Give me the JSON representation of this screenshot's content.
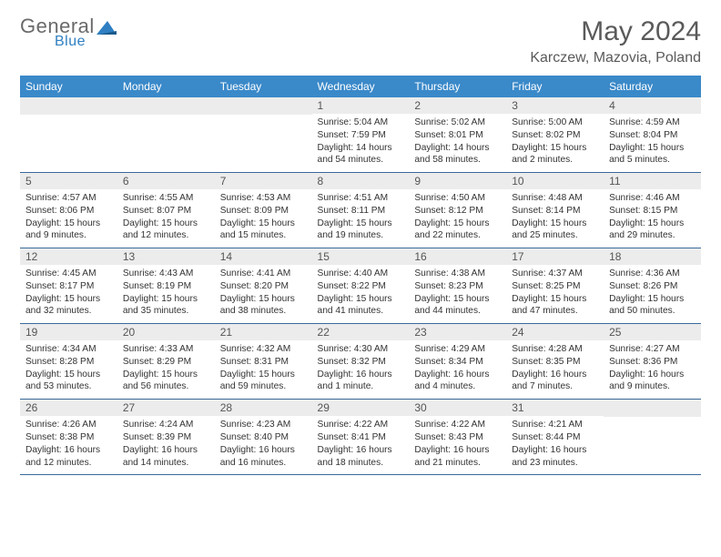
{
  "logo": {
    "text1": "General",
    "text2": "Blue"
  },
  "title": "May 2024",
  "location": "Karczew, Mazovia, Poland",
  "dayHeaders": [
    "Sunday",
    "Monday",
    "Tuesday",
    "Wednesday",
    "Thursday",
    "Friday",
    "Saturday"
  ],
  "colors": {
    "header_bg": "#3a89c9",
    "header_text": "#ffffff",
    "daynum_bg": "#ececec",
    "border": "#3a6a9a",
    "title_color": "#5a5a5a",
    "logo_gray": "#6a6a6a",
    "logo_blue": "#2f7fc2"
  },
  "weeks": [
    [
      {
        "blank": true
      },
      {
        "blank": true
      },
      {
        "blank": true
      },
      {
        "day": "1",
        "sunrise": "Sunrise: 5:04 AM",
        "sunset": "Sunset: 7:59 PM",
        "daylight": "Daylight: 14 hours and 54 minutes."
      },
      {
        "day": "2",
        "sunrise": "Sunrise: 5:02 AM",
        "sunset": "Sunset: 8:01 PM",
        "daylight": "Daylight: 14 hours and 58 minutes."
      },
      {
        "day": "3",
        "sunrise": "Sunrise: 5:00 AM",
        "sunset": "Sunset: 8:02 PM",
        "daylight": "Daylight: 15 hours and 2 minutes."
      },
      {
        "day": "4",
        "sunrise": "Sunrise: 4:59 AM",
        "sunset": "Sunset: 8:04 PM",
        "daylight": "Daylight: 15 hours and 5 minutes."
      }
    ],
    [
      {
        "day": "5",
        "sunrise": "Sunrise: 4:57 AM",
        "sunset": "Sunset: 8:06 PM",
        "daylight": "Daylight: 15 hours and 9 minutes."
      },
      {
        "day": "6",
        "sunrise": "Sunrise: 4:55 AM",
        "sunset": "Sunset: 8:07 PM",
        "daylight": "Daylight: 15 hours and 12 minutes."
      },
      {
        "day": "7",
        "sunrise": "Sunrise: 4:53 AM",
        "sunset": "Sunset: 8:09 PM",
        "daylight": "Daylight: 15 hours and 15 minutes."
      },
      {
        "day": "8",
        "sunrise": "Sunrise: 4:51 AM",
        "sunset": "Sunset: 8:11 PM",
        "daylight": "Daylight: 15 hours and 19 minutes."
      },
      {
        "day": "9",
        "sunrise": "Sunrise: 4:50 AM",
        "sunset": "Sunset: 8:12 PM",
        "daylight": "Daylight: 15 hours and 22 minutes."
      },
      {
        "day": "10",
        "sunrise": "Sunrise: 4:48 AM",
        "sunset": "Sunset: 8:14 PM",
        "daylight": "Daylight: 15 hours and 25 minutes."
      },
      {
        "day": "11",
        "sunrise": "Sunrise: 4:46 AM",
        "sunset": "Sunset: 8:15 PM",
        "daylight": "Daylight: 15 hours and 29 minutes."
      }
    ],
    [
      {
        "day": "12",
        "sunrise": "Sunrise: 4:45 AM",
        "sunset": "Sunset: 8:17 PM",
        "daylight": "Daylight: 15 hours and 32 minutes."
      },
      {
        "day": "13",
        "sunrise": "Sunrise: 4:43 AM",
        "sunset": "Sunset: 8:19 PM",
        "daylight": "Daylight: 15 hours and 35 minutes."
      },
      {
        "day": "14",
        "sunrise": "Sunrise: 4:41 AM",
        "sunset": "Sunset: 8:20 PM",
        "daylight": "Daylight: 15 hours and 38 minutes."
      },
      {
        "day": "15",
        "sunrise": "Sunrise: 4:40 AM",
        "sunset": "Sunset: 8:22 PM",
        "daylight": "Daylight: 15 hours and 41 minutes."
      },
      {
        "day": "16",
        "sunrise": "Sunrise: 4:38 AM",
        "sunset": "Sunset: 8:23 PM",
        "daylight": "Daylight: 15 hours and 44 minutes."
      },
      {
        "day": "17",
        "sunrise": "Sunrise: 4:37 AM",
        "sunset": "Sunset: 8:25 PM",
        "daylight": "Daylight: 15 hours and 47 minutes."
      },
      {
        "day": "18",
        "sunrise": "Sunrise: 4:36 AM",
        "sunset": "Sunset: 8:26 PM",
        "daylight": "Daylight: 15 hours and 50 minutes."
      }
    ],
    [
      {
        "day": "19",
        "sunrise": "Sunrise: 4:34 AM",
        "sunset": "Sunset: 8:28 PM",
        "daylight": "Daylight: 15 hours and 53 minutes."
      },
      {
        "day": "20",
        "sunrise": "Sunrise: 4:33 AM",
        "sunset": "Sunset: 8:29 PM",
        "daylight": "Daylight: 15 hours and 56 minutes."
      },
      {
        "day": "21",
        "sunrise": "Sunrise: 4:32 AM",
        "sunset": "Sunset: 8:31 PM",
        "daylight": "Daylight: 15 hours and 59 minutes."
      },
      {
        "day": "22",
        "sunrise": "Sunrise: 4:30 AM",
        "sunset": "Sunset: 8:32 PM",
        "daylight": "Daylight: 16 hours and 1 minute."
      },
      {
        "day": "23",
        "sunrise": "Sunrise: 4:29 AM",
        "sunset": "Sunset: 8:34 PM",
        "daylight": "Daylight: 16 hours and 4 minutes."
      },
      {
        "day": "24",
        "sunrise": "Sunrise: 4:28 AM",
        "sunset": "Sunset: 8:35 PM",
        "daylight": "Daylight: 16 hours and 7 minutes."
      },
      {
        "day": "25",
        "sunrise": "Sunrise: 4:27 AM",
        "sunset": "Sunset: 8:36 PM",
        "daylight": "Daylight: 16 hours and 9 minutes."
      }
    ],
    [
      {
        "day": "26",
        "sunrise": "Sunrise: 4:26 AM",
        "sunset": "Sunset: 8:38 PM",
        "daylight": "Daylight: 16 hours and 12 minutes."
      },
      {
        "day": "27",
        "sunrise": "Sunrise: 4:24 AM",
        "sunset": "Sunset: 8:39 PM",
        "daylight": "Daylight: 16 hours and 14 minutes."
      },
      {
        "day": "28",
        "sunrise": "Sunrise: 4:23 AM",
        "sunset": "Sunset: 8:40 PM",
        "daylight": "Daylight: 16 hours and 16 minutes."
      },
      {
        "day": "29",
        "sunrise": "Sunrise: 4:22 AM",
        "sunset": "Sunset: 8:41 PM",
        "daylight": "Daylight: 16 hours and 18 minutes."
      },
      {
        "day": "30",
        "sunrise": "Sunrise: 4:22 AM",
        "sunset": "Sunset: 8:43 PM",
        "daylight": "Daylight: 16 hours and 21 minutes."
      },
      {
        "day": "31",
        "sunrise": "Sunrise: 4:21 AM",
        "sunset": "Sunset: 8:44 PM",
        "daylight": "Daylight: 16 hours and 23 minutes."
      },
      {
        "blank": true
      }
    ]
  ]
}
